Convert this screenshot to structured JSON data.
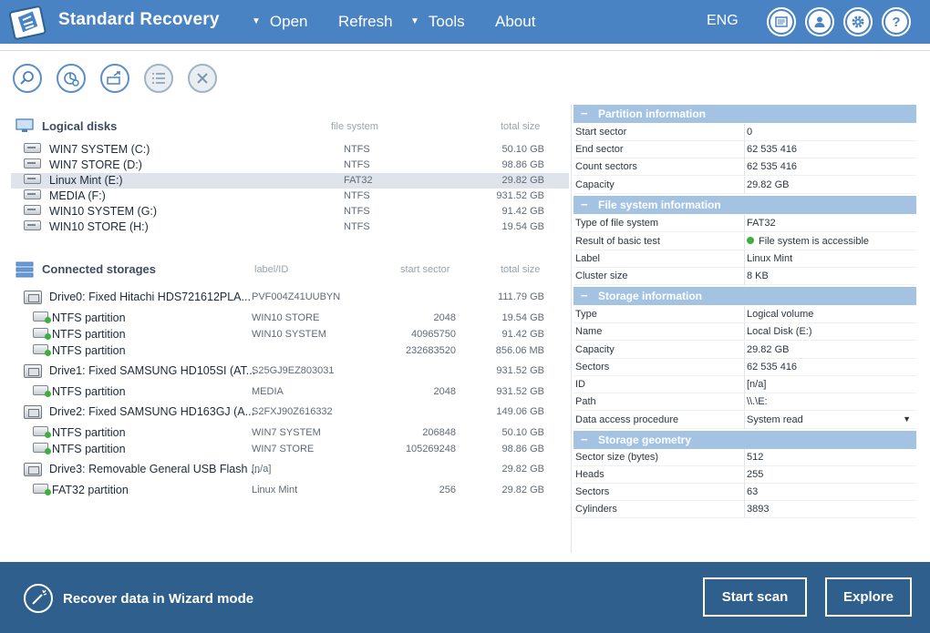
{
  "app": {
    "title": "Standard Recovery"
  },
  "menu": {
    "open": "Open",
    "refresh": "Refresh",
    "tools": "Tools",
    "about": "About",
    "language": "ENG"
  },
  "logical_disks": {
    "title": "Logical disks",
    "col_fs": "file system",
    "col_size": "total size",
    "items": [
      {
        "name": "WIN7 SYSTEM (C:)",
        "fs": "NTFS",
        "size": "50.10 GB"
      },
      {
        "name": "WIN7 STORE (D:)",
        "fs": "NTFS",
        "size": "98.86 GB"
      },
      {
        "name": "Linux Mint (E:)",
        "fs": "FAT32",
        "size": "29.82 GB"
      },
      {
        "name": "MEDIA (F:)",
        "fs": "NTFS",
        "size": "931.52 GB"
      },
      {
        "name": "WIN10 SYSTEM (G:)",
        "fs": "NTFS",
        "size": "91.42 GB"
      },
      {
        "name": "WIN10 STORE (H:)",
        "fs": "NTFS",
        "size": "19.54 GB"
      }
    ]
  },
  "storages": {
    "title": "Connected storages",
    "col_label": "label/ID",
    "col_start": "start sector",
    "col_size": "total size",
    "rows": [
      {
        "type": "drive",
        "name": "Drive0: Fixed Hitachi HDS721612PLA...",
        "label": "PVF004Z41UUBYN",
        "start": "",
        "size": "111.79 GB"
      },
      {
        "type": "part",
        "name": "NTFS partition",
        "label": "WIN10 STORE",
        "start": "2048",
        "size": "19.54 GB"
      },
      {
        "type": "part",
        "name": "NTFS partition",
        "label": "WIN10 SYSTEM",
        "start": "40965750",
        "size": "91.42 GB"
      },
      {
        "type": "part",
        "name": "NTFS partition",
        "label": "",
        "start": "232683520",
        "size": "856.06 MB"
      },
      {
        "type": "drive",
        "name": "Drive1: Fixed SAMSUNG HD105SI (AT...",
        "label": "S25GJ9EZ803031",
        "start": "",
        "size": "931.52 GB"
      },
      {
        "type": "part",
        "name": "NTFS partition",
        "label": "MEDIA",
        "start": "2048",
        "size": "931.52 GB"
      },
      {
        "type": "drive",
        "name": "Drive2: Fixed SAMSUNG HD163GJ (A...",
        "label": "S2FXJ90Z616332",
        "start": "",
        "size": "149.06 GB"
      },
      {
        "type": "part",
        "name": "NTFS partition",
        "label": "WIN7 SYSTEM",
        "start": "206848",
        "size": "50.10 GB"
      },
      {
        "type": "part",
        "name": "NTFS partition",
        "label": "WIN7 STORE",
        "start": "105269248",
        "size": "98.86 GB"
      },
      {
        "type": "drive",
        "name": "Drive3: Removable General USB Flash ...",
        "label": "[n/a]",
        "start": "",
        "size": "29.82 GB"
      },
      {
        "type": "part",
        "name": "FAT32 partition",
        "label": "Linux Mint",
        "start": "256",
        "size": "29.82 GB"
      }
    ]
  },
  "info": {
    "partition": {
      "title": "Partition information",
      "rows": [
        {
          "k": "Start sector",
          "v": "0"
        },
        {
          "k": "End sector",
          "v": "62 535 416"
        },
        {
          "k": "Count sectors",
          "v": "62 535 416"
        },
        {
          "k": "Capacity",
          "v": "29.82 GB"
        }
      ]
    },
    "filesystem": {
      "title": "File system information",
      "rows": [
        {
          "k": "Type of file system",
          "v": "FAT32"
        },
        {
          "k": "Result of basic test",
          "v": "File system is accessible"
        },
        {
          "k": "Label",
          "v": "Linux Mint"
        },
        {
          "k": "Cluster size",
          "v": "8 KB"
        }
      ]
    },
    "storage": {
      "title": "Storage information",
      "rows": [
        {
          "k": "Type",
          "v": "Logical volume"
        },
        {
          "k": "Name",
          "v": "Local Disk (E:)"
        },
        {
          "k": "Capacity",
          "v": "29.82 GB"
        },
        {
          "k": "Sectors",
          "v": "62 535 416"
        },
        {
          "k": "ID",
          "v": "[n/a]"
        },
        {
          "k": "Path",
          "v": "\\\\.\\E:"
        },
        {
          "k": "Data access procedure",
          "v": "System read"
        }
      ]
    },
    "geometry": {
      "title": "Storage geometry",
      "rows": [
        {
          "k": "Sector size (bytes)",
          "v": "512"
        },
        {
          "k": "Heads",
          "v": "255"
        },
        {
          "k": "Sectors",
          "v": "63"
        },
        {
          "k": "Cylinders",
          "v": "3893"
        }
      ]
    }
  },
  "footer": {
    "wizard": "Recover data in Wizard mode",
    "start_scan": "Start scan",
    "explore": "Explore"
  },
  "colors": {
    "header": "#4a83c4",
    "footer": "#2f5f8d",
    "section_header": "#a4c3e3",
    "selected_row": "#dfe4ec",
    "ok_green": "#3fae3f"
  }
}
